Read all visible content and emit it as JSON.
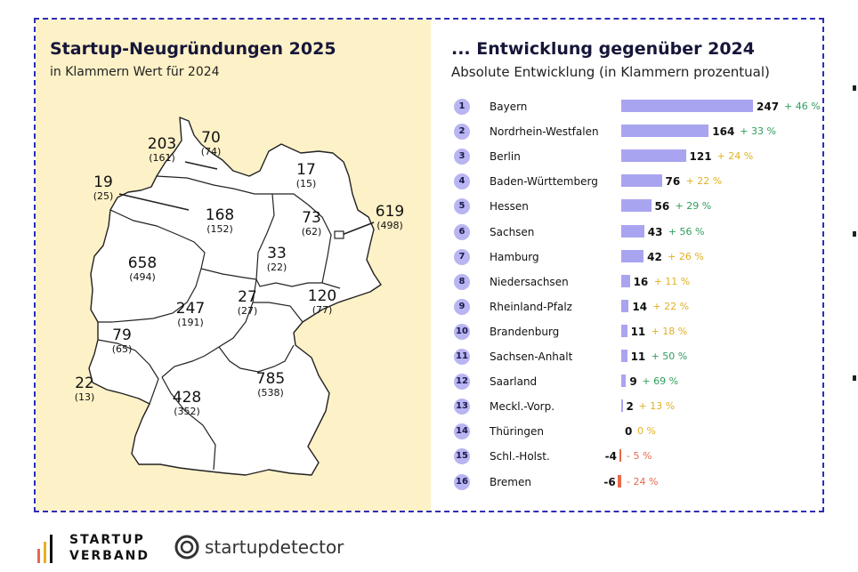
{
  "left": {
    "title": "Startup-Neugründungen 2025",
    "subtitle": "in Klammern Wert für 2024"
  },
  "right": {
    "title": "... Entwicklung gegenüber 2024",
    "subtitle": "Absolute Entwicklung (in Klammern prozentual)"
  },
  "map_labels": [
    {
      "value": "70",
      "prev": "(74)"
    },
    {
      "value": "203",
      "prev": "(161)"
    },
    {
      "value": "17",
      "prev": "(15)"
    },
    {
      "value": "19",
      "prev": "(25)"
    },
    {
      "value": "168",
      "prev": "(152)"
    },
    {
      "value": "73",
      "prev": "(62)"
    },
    {
      "value": "619",
      "prev": "(498)"
    },
    {
      "value": "33",
      "prev": "(22)"
    },
    {
      "value": "658",
      "prev": "(494)"
    },
    {
      "value": "27",
      "prev": "(27)"
    },
    {
      "value": "120",
      "prev": "(77)"
    },
    {
      "value": "247",
      "prev": "(191)"
    },
    {
      "value": "79",
      "prev": "(65)"
    },
    {
      "value": "22",
      "prev": "(13)"
    },
    {
      "value": "785",
      "prev": "(538)"
    },
    {
      "value": "428",
      "prev": "(352)"
    }
  ],
  "chart_data": {
    "type": "bar",
    "title": "... Entwicklung gegenüber 2024",
    "subtitle": "Absolute Entwicklung (in Klammern prozentual)",
    "categories": [
      "Bayern",
      "Nordrhein-Westfalen",
      "Berlin",
      "Baden-Württemberg",
      "Hessen",
      "Sachsen",
      "Hamburg",
      "Niedersachsen",
      "Rheinland-Pfalz",
      "Brandenburg",
      "Sachsen-Anhalt",
      "Saarland",
      "Meckl.-Vorp.",
      "Thüringen",
      "Schl.-Holst.",
      "Bremen"
    ],
    "ranks": [
      "1",
      "2",
      "3",
      "4",
      "5",
      "6",
      "7",
      "8",
      "9",
      "10",
      "11",
      "12",
      "13",
      "14",
      "15",
      "16"
    ],
    "values": [
      247,
      164,
      121,
      76,
      56,
      43,
      42,
      16,
      14,
      11,
      11,
      9,
      2,
      0,
      -4,
      -6
    ],
    "pct_labels": [
      "+ 46 %",
      "+ 33 %",
      "+ 24 %",
      "+ 22 %",
      "+ 29 %",
      "+ 56 %",
      "+ 26 %",
      "+ 11 %",
      "+ 22 %",
      "+ 18 %",
      "+ 50 %",
      "+ 69 %",
      "+ 13 %",
      "0 %",
      "- 5 %",
      "- 24 %"
    ],
    "colors": {
      "bar_positive": "#a9a4f0",
      "bar_negative": "#e8694a",
      "pct_green": "#2e9e5b",
      "pct_yellow": "#e0b020",
      "pct_red": "#e8694a",
      "rank_circle": "#b9b5f2"
    }
  },
  "footer": {
    "logo1_line1": "STARTUP",
    "logo1_line2": "VERBAND",
    "logo2": "startupdetector"
  }
}
